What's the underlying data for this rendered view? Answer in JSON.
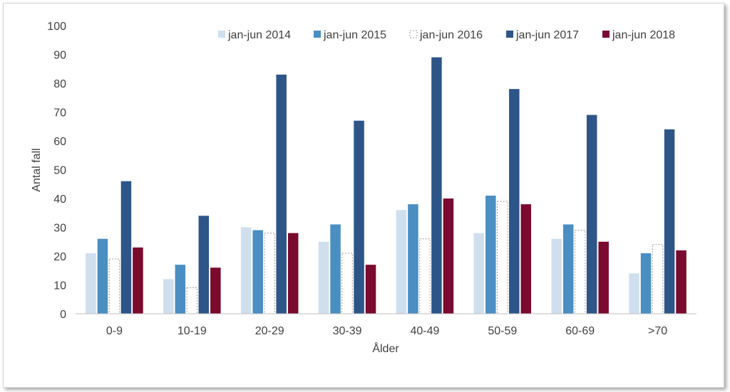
{
  "chart_data": {
    "type": "bar",
    "title": "",
    "xlabel": "Ålder",
    "ylabel": "Antal fall",
    "ylim": [
      0,
      100
    ],
    "yticks": [
      0,
      10,
      20,
      30,
      40,
      50,
      60,
      70,
      80,
      90,
      100
    ],
    "grid": false,
    "legend_position": "top-right",
    "categories": [
      "0-9",
      "10-19",
      "20-29",
      "30-39",
      "40-49",
      "50-59",
      "60-69",
      ">70"
    ],
    "series": [
      {
        "name": "jan-jun 2014",
        "color": "#cfdfee",
        "values": [
          21,
          12,
          30,
          25,
          36,
          28,
          26,
          14
        ]
      },
      {
        "name": "jan-jun 2015",
        "color": "#4a8ec2",
        "values": [
          26,
          17,
          29,
          31,
          38,
          41,
          31,
          21
        ]
      },
      {
        "name": "jan-jun 2016",
        "color": "#ffffff",
        "stroke": "#9a9a9a",
        "dashed": true,
        "values": [
          19,
          9,
          28,
          21,
          26,
          39,
          29,
          24
        ]
      },
      {
        "name": "jan-jun 2017",
        "color": "#2d5587",
        "values": [
          46,
          34,
          83,
          67,
          89,
          78,
          69,
          64
        ]
      },
      {
        "name": "jan-jun 2018",
        "color": "#7a0a2e",
        "values": [
          23,
          16,
          28,
          17,
          40,
          38,
          25,
          22
        ]
      }
    ]
  }
}
